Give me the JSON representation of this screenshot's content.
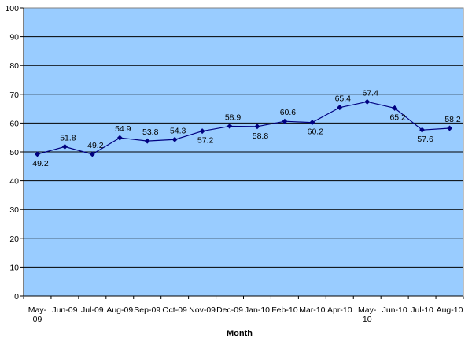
{
  "chart_data": {
    "type": "line",
    "title": "",
    "xlabel": "Month",
    "ylabel": "",
    "ylim": [
      0,
      100
    ],
    "yticks": [
      0,
      10,
      20,
      30,
      40,
      50,
      60,
      70,
      80,
      90,
      100
    ],
    "grid": true,
    "legend": "none",
    "categories": [
      [
        "May-",
        "09"
      ],
      [
        "Jun-09"
      ],
      [
        "Jul-09"
      ],
      [
        "Aug-09"
      ],
      [
        "Sep-09"
      ],
      [
        "Oct-09"
      ],
      [
        "Nov-09"
      ],
      [
        "Dec-09"
      ],
      [
        "Jan-10"
      ],
      [
        "Feb-10"
      ],
      [
        "Mar-10"
      ],
      [
        "Apr-10"
      ],
      [
        "May-",
        "10"
      ],
      [
        "Jun-10"
      ],
      [
        "Jul-10"
      ],
      [
        "Aug-10"
      ]
    ],
    "series": [
      {
        "values": [
          49.2,
          51.8,
          49.2,
          54.9,
          53.8,
          54.3,
          57.2,
          58.9,
          58.8,
          60.6,
          60.2,
          65.4,
          67.4,
          65.2,
          57.6,
          58.2
        ],
        "labels": [
          "49.2",
          "51.8",
          "49.2",
          "54.9",
          "53.8",
          "54.3",
          "57.2",
          "58.9",
          "58.8",
          "60.6",
          "60.2",
          "65.4",
          "67.4",
          "65.2",
          "57.6",
          "58.2"
        ],
        "label_position": [
          "below",
          "above",
          "above",
          "above",
          "above",
          "above",
          "below",
          "above",
          "below",
          "above",
          "below",
          "above",
          "above",
          "below",
          "below",
          "above"
        ]
      }
    ],
    "colors": {
      "plot_background": "#99CCFF",
      "gridline": "#000000",
      "series_line": "#000080",
      "marker": "#000080"
    }
  }
}
